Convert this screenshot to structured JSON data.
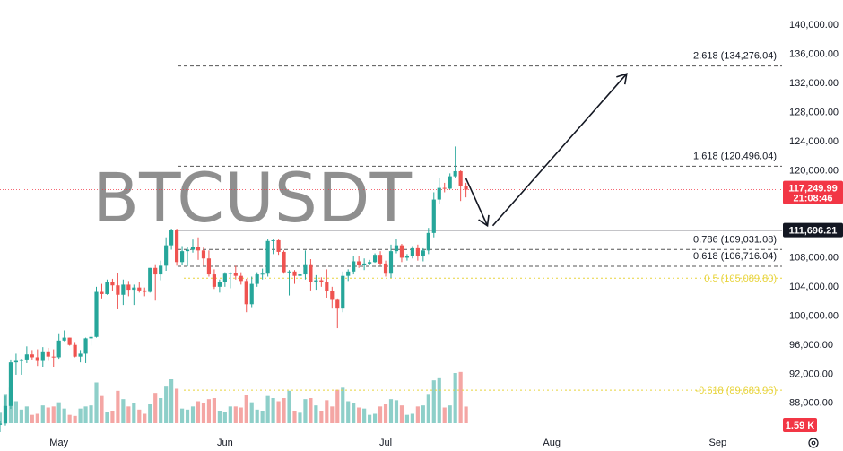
{
  "watermark": "BTCUSDT",
  "colors": {
    "up": "#26a69a",
    "down": "#ef5350",
    "volume_up": "#8ecfc9",
    "volume_down": "#f4a6a4",
    "fib_line": "#555555",
    "fib_yellow": "#e8d43c",
    "current_price": "#f23645",
    "horizontal_line": "#131722"
  },
  "price_axis": {
    "ticks": [
      "140,000.00",
      "136,000.00",
      "132,000.00",
      "128,000.00",
      "124,000.00",
      "120,000.00",
      "108,000.00",
      "104,000.00",
      "100,000.00",
      "96,000.00",
      "92,000.00",
      "88,000.00"
    ]
  },
  "time_axis": {
    "ticks": [
      "May",
      "Jun",
      "Jul",
      "Aug",
      "Sep"
    ]
  },
  "current_price_badge": {
    "price": "117,249.99",
    "countdown": "21:08:46"
  },
  "horizontal_level_badge": "111,696.21",
  "volume_badge": "1.59 K",
  "fib_levels": [
    {
      "label": "2.618 (134,276.04)",
      "value": 134276.04,
      "style": "dashed"
    },
    {
      "label": "1.618 (120,496.04)",
      "value": 120496.04,
      "style": "dashed"
    },
    {
      "label": "0.786 (109,031.08)",
      "value": 109031.08,
      "style": "dashed"
    },
    {
      "label": "0.618 (106,716.04)",
      "value": 106716.04,
      "style": "dashed"
    },
    {
      "label": "0.5 (105,089.80)",
      "value": 105089.8,
      "style": "yellow"
    },
    {
      "label": "-0.618 (89,683.96)",
      "value": 89683.96,
      "style": "yellow"
    }
  ],
  "settings_icon": "gear-icon",
  "chart_data": {
    "type": "candlestick",
    "symbol": "BTCUSDT",
    "interval": "1D",
    "ylim": [
      85500,
      142000
    ],
    "date_range": [
      "2025-04-20",
      "2025-09-13"
    ],
    "current_price": 117249.99,
    "horizontal_level": 111696.21,
    "volume_ylim": [
      0,
      6
    ],
    "annotations": [
      {
        "type": "arrow",
        "from": [
          "2025-07-16",
          118800
        ],
        "to": [
          "2025-07-20",
          112300
        ]
      },
      {
        "type": "arrow",
        "from": [
          "2025-07-21",
          112300
        ],
        "to": [
          "2025-08-15",
          133200
        ]
      }
    ],
    "candles": [
      {
        "d": "2025-04-20",
        "o": 84900,
        "h": 85400,
        "l": 83900,
        "c": 85100,
        "v": 1.0
      },
      {
        "d": "2025-04-21",
        "o": 85100,
        "h": 88900,
        "l": 84800,
        "c": 87500,
        "v": 2.8
      },
      {
        "d": "2025-04-22",
        "o": 87500,
        "h": 93900,
        "l": 87100,
        "c": 93500,
        "v": 3.4
      },
      {
        "d": "2025-04-23",
        "o": 93500,
        "h": 94700,
        "l": 91800,
        "c": 93700,
        "v": 2.1
      },
      {
        "d": "2025-04-24",
        "o": 93700,
        "h": 94000,
        "l": 91800,
        "c": 93900,
        "v": 1.3
      },
      {
        "d": "2025-04-25",
        "o": 93900,
        "h": 95700,
        "l": 93400,
        "c": 94600,
        "v": 1.6
      },
      {
        "d": "2025-04-26",
        "o": 94600,
        "h": 95200,
        "l": 93900,
        "c": 94200,
        "v": 0.8
      },
      {
        "d": "2025-04-27",
        "o": 94200,
        "h": 95300,
        "l": 93000,
        "c": 93700,
        "v": 0.9
      },
      {
        "d": "2025-04-28",
        "o": 93700,
        "h": 95600,
        "l": 92900,
        "c": 94900,
        "v": 1.7
      },
      {
        "d": "2025-04-29",
        "o": 94900,
        "h": 95500,
        "l": 93700,
        "c": 94300,
        "v": 1.5
      },
      {
        "d": "2025-04-30",
        "o": 94300,
        "h": 95300,
        "l": 92900,
        "c": 94200,
        "v": 1.6
      },
      {
        "d": "2025-05-01",
        "o": 94200,
        "h": 97500,
        "l": 94000,
        "c": 96500,
        "v": 2.0
      },
      {
        "d": "2025-05-02",
        "o": 96500,
        "h": 97900,
        "l": 96400,
        "c": 96900,
        "v": 1.4
      },
      {
        "d": "2025-05-03",
        "o": 96900,
        "h": 96900,
        "l": 95800,
        "c": 95900,
        "v": 0.8
      },
      {
        "d": "2025-05-04",
        "o": 95900,
        "h": 96300,
        "l": 94200,
        "c": 94300,
        "v": 0.7
      },
      {
        "d": "2025-05-05",
        "o": 94300,
        "h": 95200,
        "l": 93500,
        "c": 94700,
        "v": 1.4
      },
      {
        "d": "2025-05-06",
        "o": 94700,
        "h": 96900,
        "l": 93400,
        "c": 96800,
        "v": 1.6
      },
      {
        "d": "2025-05-07",
        "o": 96800,
        "h": 97700,
        "l": 95800,
        "c": 97000,
        "v": 1.7
      },
      {
        "d": "2025-05-08",
        "o": 97000,
        "h": 103900,
        "l": 96900,
        "c": 103200,
        "v": 3.9
      },
      {
        "d": "2025-05-09",
        "o": 103200,
        "h": 104300,
        "l": 102300,
        "c": 102900,
        "v": 2.6
      },
      {
        "d": "2025-05-10",
        "o": 102900,
        "h": 104900,
        "l": 102800,
        "c": 104600,
        "v": 1.1
      },
      {
        "d": "2025-05-11",
        "o": 104600,
        "h": 105000,
        "l": 103300,
        "c": 104100,
        "v": 1.2
      },
      {
        "d": "2025-05-12",
        "o": 104100,
        "h": 105800,
        "l": 100800,
        "c": 102800,
        "v": 3.1
      },
      {
        "d": "2025-05-13",
        "o": 102800,
        "h": 104900,
        "l": 101400,
        "c": 104200,
        "v": 2.3
      },
      {
        "d": "2025-05-14",
        "o": 104200,
        "h": 104700,
        "l": 102600,
        "c": 103500,
        "v": 1.6
      },
      {
        "d": "2025-05-15",
        "o": 103500,
        "h": 104200,
        "l": 101400,
        "c": 103800,
        "v": 1.9
      },
      {
        "d": "2025-05-16",
        "o": 103800,
        "h": 104500,
        "l": 103100,
        "c": 103400,
        "v": 1.3
      },
      {
        "d": "2025-05-17",
        "o": 103400,
        "h": 103800,
        "l": 102600,
        "c": 103200,
        "v": 0.9
      },
      {
        "d": "2025-05-18",
        "o": 103200,
        "h": 106500,
        "l": 103100,
        "c": 106500,
        "v": 1.8
      },
      {
        "d": "2025-05-19",
        "o": 106500,
        "h": 107000,
        "l": 102000,
        "c": 105600,
        "v": 2.9
      },
      {
        "d": "2025-05-20",
        "o": 105600,
        "h": 107500,
        "l": 104800,
        "c": 106800,
        "v": 2.4
      },
      {
        "d": "2025-05-21",
        "o": 106800,
        "h": 110700,
        "l": 106100,
        "c": 109600,
        "v": 3.5
      },
      {
        "d": "2025-05-22",
        "o": 109600,
        "h": 111900,
        "l": 109000,
        "c": 111700,
        "v": 4.2
      },
      {
        "d": "2025-05-23",
        "o": 111700,
        "h": 111900,
        "l": 106800,
        "c": 107300,
        "v": 3.3
      },
      {
        "d": "2025-05-24",
        "o": 107300,
        "h": 109500,
        "l": 106900,
        "c": 108800,
        "v": 1.4
      },
      {
        "d": "2025-05-25",
        "o": 108800,
        "h": 109300,
        "l": 106700,
        "c": 109000,
        "v": 1.3
      },
      {
        "d": "2025-05-26",
        "o": 109000,
        "h": 110400,
        "l": 108600,
        "c": 109400,
        "v": 1.6
      },
      {
        "d": "2025-05-27",
        "o": 109400,
        "h": 110700,
        "l": 107600,
        "c": 108900,
        "v": 2.1
      },
      {
        "d": "2025-05-28",
        "o": 108900,
        "h": 109300,
        "l": 106800,
        "c": 107800,
        "v": 1.9
      },
      {
        "d": "2025-05-29",
        "o": 107800,
        "h": 108900,
        "l": 105300,
        "c": 105600,
        "v": 2.3
      },
      {
        "d": "2025-05-30",
        "o": 105600,
        "h": 106300,
        "l": 103600,
        "c": 103900,
        "v": 2.4
      },
      {
        "d": "2025-05-31",
        "o": 103900,
        "h": 104900,
        "l": 103100,
        "c": 104600,
        "v": 1.2
      },
      {
        "d": "2025-06-01",
        "o": 104600,
        "h": 105900,
        "l": 103900,
        "c": 105700,
        "v": 1.1
      },
      {
        "d": "2025-06-02",
        "o": 105700,
        "h": 105900,
        "l": 103700,
        "c": 105800,
        "v": 1.6
      },
      {
        "d": "2025-06-03",
        "o": 105800,
        "h": 106800,
        "l": 104900,
        "c": 105400,
        "v": 1.6
      },
      {
        "d": "2025-06-04",
        "o": 105400,
        "h": 105900,
        "l": 104200,
        "c": 104700,
        "v": 1.5
      },
      {
        "d": "2025-06-05",
        "o": 104700,
        "h": 105000,
        "l": 100400,
        "c": 101500,
        "v": 2.7
      },
      {
        "d": "2025-06-06",
        "o": 101500,
        "h": 105300,
        "l": 101100,
        "c": 104300,
        "v": 2.0
      },
      {
        "d": "2025-06-07",
        "o": 104300,
        "h": 105900,
        "l": 103900,
        "c": 105600,
        "v": 1.3
      },
      {
        "d": "2025-06-08",
        "o": 105600,
        "h": 106400,
        "l": 104900,
        "c": 105700,
        "v": 1.2
      },
      {
        "d": "2025-06-09",
        "o": 105700,
        "h": 110500,
        "l": 105300,
        "c": 110200,
        "v": 2.6
      },
      {
        "d": "2025-06-10",
        "o": 110200,
        "h": 110400,
        "l": 108400,
        "c": 110300,
        "v": 2.4
      },
      {
        "d": "2025-06-11",
        "o": 110300,
        "h": 110400,
        "l": 108300,
        "c": 108700,
        "v": 2.1
      },
      {
        "d": "2025-06-12",
        "o": 108700,
        "h": 108900,
        "l": 105700,
        "c": 105900,
        "v": 2.4
      },
      {
        "d": "2025-06-13",
        "o": 105900,
        "h": 106200,
        "l": 102700,
        "c": 106000,
        "v": 3.1
      },
      {
        "d": "2025-06-14",
        "o": 106000,
        "h": 106200,
        "l": 104300,
        "c": 105400,
        "v": 1.2
      },
      {
        "d": "2025-06-15",
        "o": 105400,
        "h": 106100,
        "l": 104600,
        "c": 105600,
        "v": 1.0
      },
      {
        "d": "2025-06-16",
        "o": 105600,
        "h": 108900,
        "l": 104900,
        "c": 107000,
        "v": 2.3
      },
      {
        "d": "2025-06-17",
        "o": 107000,
        "h": 107700,
        "l": 103400,
        "c": 104600,
        "v": 2.4
      },
      {
        "d": "2025-06-18",
        "o": 104600,
        "h": 105500,
        "l": 103500,
        "c": 104800,
        "v": 1.7
      },
      {
        "d": "2025-06-19",
        "o": 104800,
        "h": 105200,
        "l": 103900,
        "c": 104600,
        "v": 1.2
      },
      {
        "d": "2025-06-20",
        "o": 104600,
        "h": 106300,
        "l": 102400,
        "c": 103300,
        "v": 2.2
      },
      {
        "d": "2025-06-21",
        "o": 103300,
        "h": 103900,
        "l": 100900,
        "c": 102100,
        "v": 1.6
      },
      {
        "d": "2025-06-22",
        "o": 102100,
        "h": 102300,
        "l": 98200,
        "c": 100900,
        "v": 3.2
      },
      {
        "d": "2025-06-23",
        "o": 100900,
        "h": 106000,
        "l": 100400,
        "c": 105400,
        "v": 3.4
      },
      {
        "d": "2025-06-24",
        "o": 105400,
        "h": 106300,
        "l": 104700,
        "c": 106000,
        "v": 2.1
      },
      {
        "d": "2025-06-25",
        "o": 106000,
        "h": 108100,
        "l": 105600,
        "c": 107400,
        "v": 1.9
      },
      {
        "d": "2025-06-26",
        "o": 107400,
        "h": 108200,
        "l": 106500,
        "c": 106900,
        "v": 1.5
      },
      {
        "d": "2025-06-27",
        "o": 106900,
        "h": 107800,
        "l": 106200,
        "c": 107100,
        "v": 1.4
      },
      {
        "d": "2025-06-28",
        "o": 107100,
        "h": 107600,
        "l": 106900,
        "c": 107300,
        "v": 0.8
      },
      {
        "d": "2025-06-29",
        "o": 107300,
        "h": 108500,
        "l": 107200,
        "c": 108300,
        "v": 0.9
      },
      {
        "d": "2025-06-30",
        "o": 108300,
        "h": 108800,
        "l": 106800,
        "c": 107100,
        "v": 1.6
      },
      {
        "d": "2025-07-01",
        "o": 107100,
        "h": 107500,
        "l": 105300,
        "c": 105700,
        "v": 1.8
      },
      {
        "d": "2025-07-02",
        "o": 105700,
        "h": 109700,
        "l": 105100,
        "c": 108800,
        "v": 2.3
      },
      {
        "d": "2025-07-03",
        "o": 108800,
        "h": 110500,
        "l": 108500,
        "c": 109600,
        "v": 2.2
      },
      {
        "d": "2025-07-04",
        "o": 109600,
        "h": 109800,
        "l": 107300,
        "c": 107900,
        "v": 1.7
      },
      {
        "d": "2025-07-05",
        "o": 107900,
        "h": 108400,
        "l": 107500,
        "c": 108100,
        "v": 0.8
      },
      {
        "d": "2025-07-06",
        "o": 108100,
        "h": 109500,
        "l": 107800,
        "c": 109200,
        "v": 0.9
      },
      {
        "d": "2025-07-07",
        "o": 109200,
        "h": 109700,
        "l": 107500,
        "c": 108200,
        "v": 1.6
      },
      {
        "d": "2025-07-08",
        "o": 108200,
        "h": 109200,
        "l": 107400,
        "c": 108900,
        "v": 1.7
      },
      {
        "d": "2025-07-09",
        "o": 108900,
        "h": 112000,
        "l": 108400,
        "c": 111300,
        "v": 2.8
      },
      {
        "d": "2025-07-10",
        "o": 111300,
        "h": 116900,
        "l": 110700,
        "c": 115900,
        "v": 4.1
      },
      {
        "d": "2025-07-11",
        "o": 115900,
        "h": 118900,
        "l": 115300,
        "c": 117500,
        "v": 4.3
      },
      {
        "d": "2025-07-12",
        "o": 117500,
        "h": 118200,
        "l": 116900,
        "c": 117400,
        "v": 1.5
      },
      {
        "d": "2025-07-13",
        "o": 117400,
        "h": 119500,
        "l": 117300,
        "c": 119100,
        "v": 1.7
      },
      {
        "d": "2025-07-14",
        "o": 119100,
        "h": 123200,
        "l": 118900,
        "c": 119800,
        "v": 4.8
      },
      {
        "d": "2025-07-15",
        "o": 119800,
        "h": 119900,
        "l": 115700,
        "c": 117700,
        "v": 4.9
      },
      {
        "d": "2025-07-16",
        "o": 117700,
        "h": 118200,
        "l": 116200,
        "c": 117250,
        "v": 1.59
      }
    ]
  }
}
